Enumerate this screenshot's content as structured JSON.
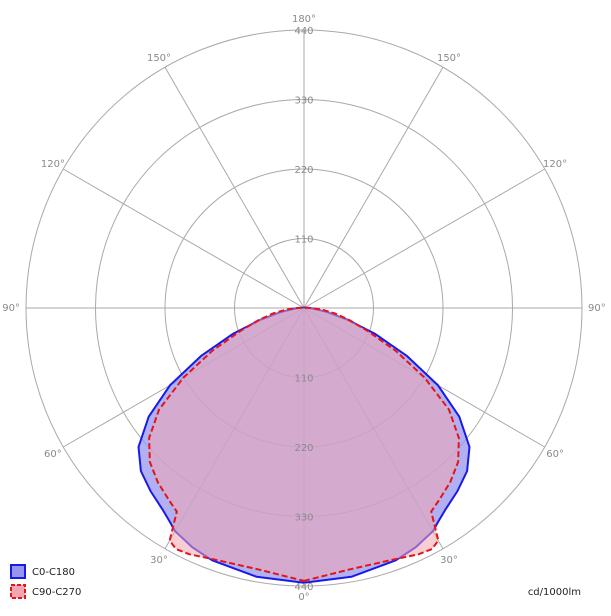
{
  "chart_data": {
    "type": "polar",
    "unit_label": "cd/1000lm",
    "radial_ticks": [
      110,
      220,
      330,
      440
    ],
    "rmax": 440,
    "angle_labels": {
      "0": "0°",
      "30": "30°",
      "60": "60°",
      "90": "90°",
      "120": "120°",
      "150": "150°",
      "180": "180°"
    },
    "angle_unit": "degrees",
    "series": [
      {
        "name": "C0-C180",
        "stroke": "#1a1ae6",
        "fill": "#9696ee",
        "dash": "solid",
        "angles": [
          0,
          10,
          20,
          25,
          30,
          32,
          35,
          40,
          45,
          50,
          55,
          60,
          65,
          70,
          75,
          80,
          85,
          90,
          100
        ],
        "values": [
          435,
          432,
          425,
          418,
          408,
          400,
          390,
          378,
          365,
          342,
          300,
          245,
          180,
          120,
          70,
          38,
          18,
          8,
          2
        ]
      },
      {
        "name": "C90-C270",
        "stroke": "#e61414",
        "fill": "#f2a5b2",
        "dash": "dashed",
        "angles": [
          0,
          10,
          20,
          25,
          28,
          30,
          32,
          35,
          40,
          45,
          50,
          55,
          60,
          65,
          70,
          75,
          80,
          85,
          90,
          95
        ],
        "values": [
          432,
          420,
          423,
          430,
          432,
          425,
          380,
          372,
          360,
          345,
          320,
          280,
          220,
          160,
          108,
          75,
          50,
          28,
          12,
          3
        ]
      }
    ]
  }
}
